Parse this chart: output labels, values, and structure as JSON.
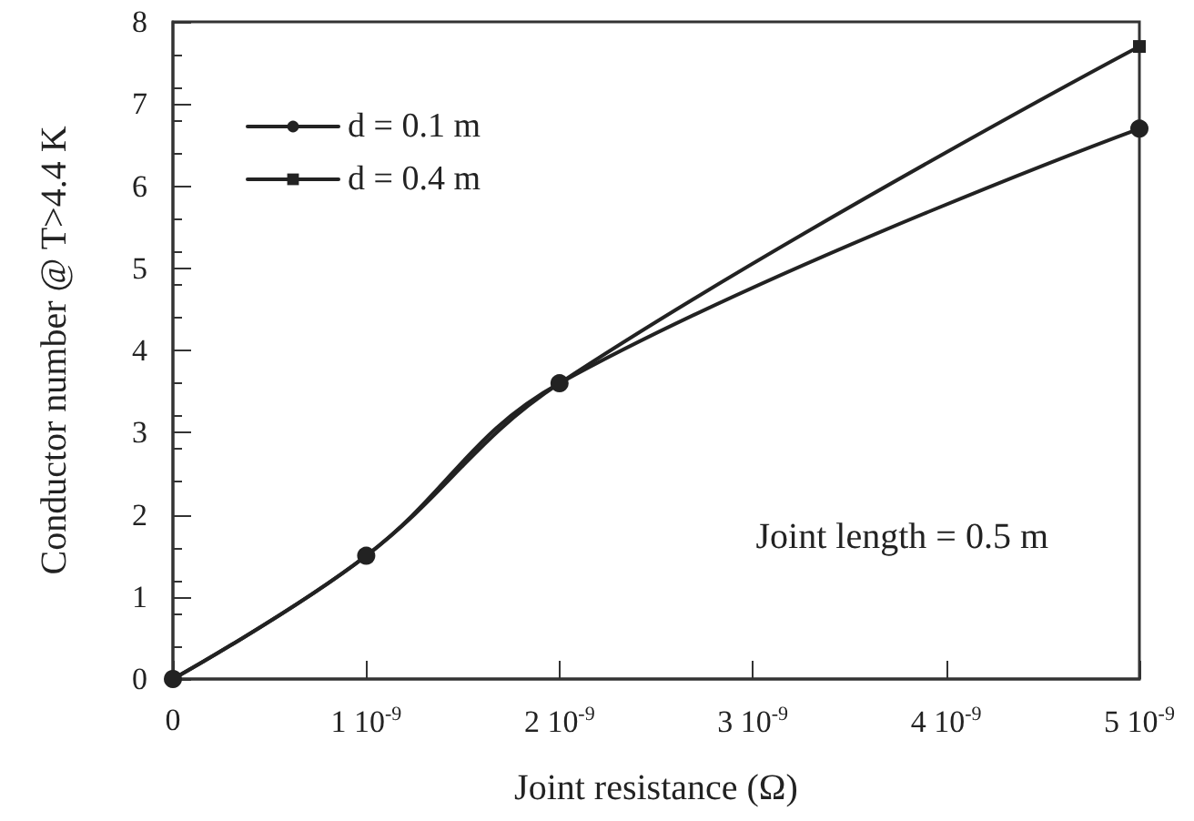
{
  "chart_data": {
    "type": "line",
    "xlabel": "Joint resistance (Ω)",
    "ylabel": "Conductor number @ T>4.4 K",
    "annotations": [
      "Joint length = 0.5 m"
    ],
    "categories": [
      "0",
      "1 10$^{-9}$",
      "2 10$^{-9}$",
      "3 10$^{-9}$",
      "4 10$^{-9}$",
      "5 10$^{-9}$"
    ],
    "series": [
      {
        "name": "d = 0.1 m",
        "color": "#222222",
        "marker": "circle",
        "values": [
          0,
          1.5,
          3.6,
          null,
          null,
          6.7
        ]
      },
      {
        "name": "d = 0.4 m",
        "color": "#222222",
        "marker": "square",
        "values": [
          0,
          1.5,
          3.6,
          null,
          null,
          7.7
        ]
      }
    ],
    "ylim": [
      0,
      8
    ],
    "yticks": [
      0,
      1,
      2,
      3,
      4,
      5,
      6,
      7,
      8
    ],
    "grid": false,
    "legend": "top left",
    "line_style": "solid"
  }
}
